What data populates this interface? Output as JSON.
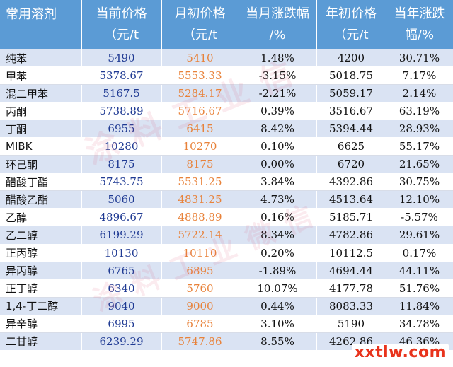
{
  "header": {
    "col0": "常用溶剂",
    "col1_line1": "当前价格",
    "col1_line2": "（元/t",
    "col2_line1": "月初价格",
    "col2_line2": "（元/t",
    "col3_line1": "当月涨跌幅",
    "col3_line2": "/%",
    "col4_line1": "年初价格",
    "col4_line2": "（元/t",
    "col5_line1": "当年涨跌",
    "col5_line2": "幅/%"
  },
  "rows": [
    {
      "name": "纯苯",
      "current": "5490",
      "month_start": "5410",
      "month_change": "1.48%",
      "year_start": "4200",
      "year_change": "30.71%"
    },
    {
      "name": "甲苯",
      "current": "5378.67",
      "month_start": "5553.33",
      "month_change": "-3.15%",
      "year_start": "5018.75",
      "year_change": "7.17%"
    },
    {
      "name": "混二甲苯",
      "current": "5167.5",
      "month_start": "5284.17",
      "month_change": "-2.21%",
      "year_start": "5059.17",
      "year_change": "2.14%"
    },
    {
      "name": "丙酮",
      "current": "5738.89",
      "month_start": "5716.67",
      "month_change": "0.39%",
      "year_start": "3516.67",
      "year_change": "63.19%"
    },
    {
      "name": "丁酮",
      "current": "6955",
      "month_start": "6415",
      "month_change": "8.42%",
      "year_start": "5394.44",
      "year_change": "28.93%"
    },
    {
      "name": "MIBK",
      "current": "10280",
      "month_start": "10270",
      "month_change": "0.10%",
      "year_start": "6625",
      "year_change": "55.17%"
    },
    {
      "name": "环己酮",
      "current": "8175",
      "month_start": "8175",
      "month_change": "0.00%",
      "year_start": "6720",
      "year_change": "21.65%"
    },
    {
      "name": "醋酸丁酯",
      "current": "5743.75",
      "month_start": "5531.25",
      "month_change": "3.84%",
      "year_start": "4392.86",
      "year_change": "30.75%"
    },
    {
      "name": "醋酸乙酯",
      "current": "5060",
      "month_start": "4831.25",
      "month_change": "4.73%",
      "year_start": "4513.64",
      "year_change": "12.10%"
    },
    {
      "name": "乙醇",
      "current": "4896.67",
      "month_start": "4888.89",
      "month_change": "0.16%",
      "year_start": "5185.71",
      "year_change": "-5.57%"
    },
    {
      "name": "乙二醇",
      "current": "6199.29",
      "month_start": "5722.14",
      "month_change": "8.34%",
      "year_start": "4782.86",
      "year_change": "29.61%"
    },
    {
      "name": "正丙醇",
      "current": "10130",
      "month_start": "10110",
      "month_change": "0.20%",
      "year_start": "10112.5",
      "year_change": "0.17%"
    },
    {
      "name": "异丙醇",
      "current": "6765",
      "month_start": "6895",
      "month_change": "-1.89%",
      "year_start": "4694.44",
      "year_change": "44.11%"
    },
    {
      "name": "正丁醇",
      "current": "6340",
      "month_start": "5760",
      "month_change": "10.07%",
      "year_start": "4177.78",
      "year_change": "51.76%"
    },
    {
      "name": "1,4-丁二醇",
      "current": "9040",
      "month_start": "9000",
      "month_change": "0.44%",
      "year_start": "8083.33",
      "year_change": "11.84%"
    },
    {
      "name": "异辛醇",
      "current": "6995",
      "month_start": "6785",
      "month_change": "3.10%",
      "year_start": "5190",
      "year_change": "34.78%"
    },
    {
      "name": "二甘醇",
      "current": "6239.29",
      "month_start": "5747.86",
      "month_change": "8.55%",
      "year_start": "4262.86",
      "year_change": "46.36%"
    }
  ],
  "watermark": {
    "line1": "涂料工业信",
    "line2": "涂料工业微信"
  },
  "logo": "xxtlw.com",
  "colors": {
    "header_bg": "#5b9bd5",
    "row_band": "#dae3f3",
    "current_price_text": "#1f3a93",
    "month_price_text": "#e8823a",
    "logo_text": "#e8331c"
  }
}
